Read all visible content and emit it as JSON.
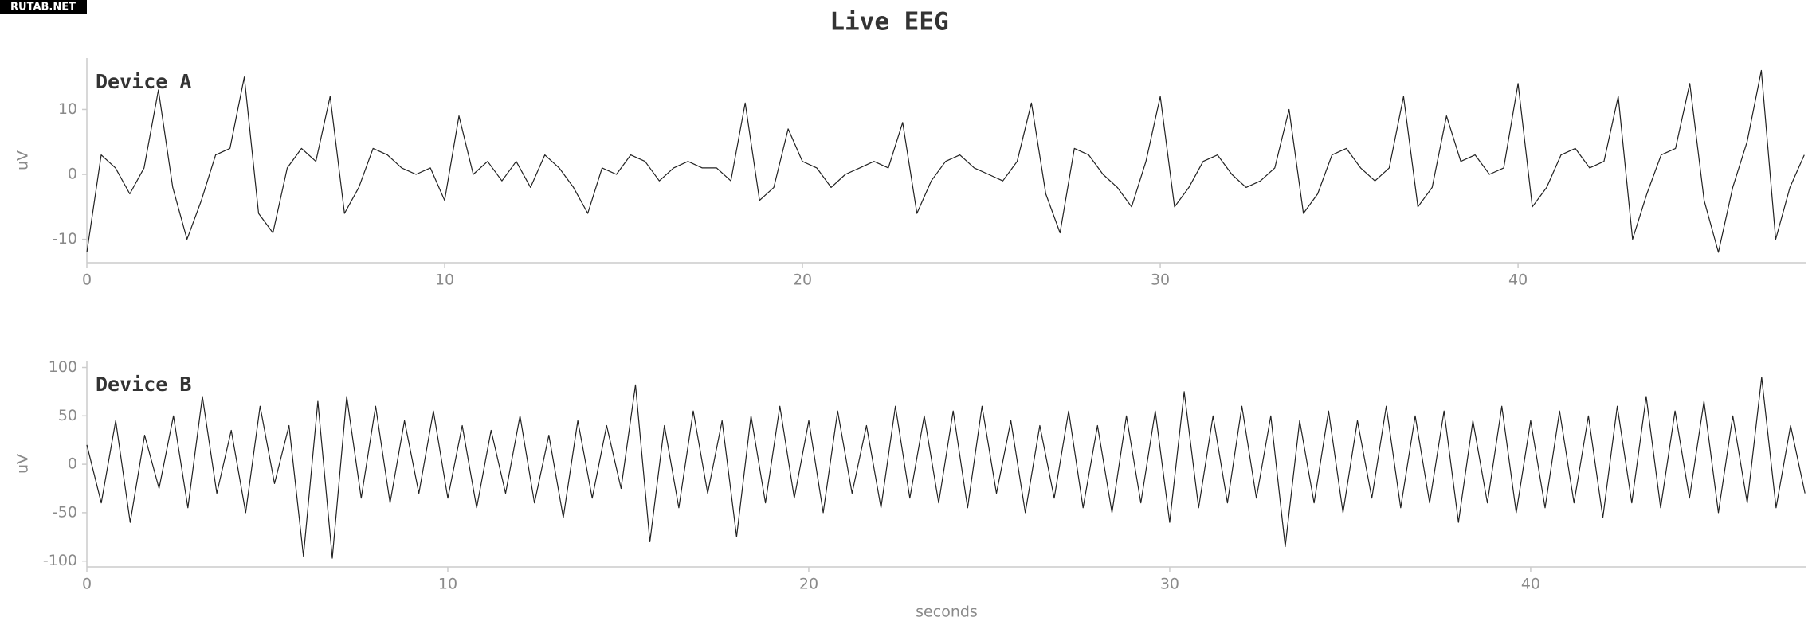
{
  "title": "Live EEG",
  "watermark": "RUTAB.NET",
  "chart_data": [
    {
      "type": "line",
      "annotation": "Device A",
      "ylabel": "uV",
      "color": "#222222",
      "xlim": [
        0,
        48.06
      ],
      "ylim": [
        -13.6,
        17.9
      ],
      "xticks": [
        0,
        10,
        20,
        30,
        40
      ],
      "yticks": [
        -10,
        0,
        10
      ],
      "x": [
        0,
        0.4,
        0.8,
        1.2,
        1.6,
        2,
        2.4,
        2.8,
        3.2,
        3.6,
        4,
        4.4,
        4.8,
        5.2,
        5.6,
        6,
        6.4,
        6.8,
        7.2,
        7.6,
        8,
        8.4,
        8.8,
        9.2,
        9.6,
        10,
        10.4,
        10.8,
        11.2,
        11.6,
        12,
        12.4,
        12.8,
        13.2,
        13.6,
        14,
        14.4,
        14.8,
        15.2,
        15.6,
        16,
        16.4,
        16.8,
        17.2,
        17.6,
        18,
        18.4,
        18.8,
        19.2,
        19.6,
        20,
        20.4,
        20.8,
        21.2,
        21.6,
        22,
        22.4,
        22.8,
        23.2,
        23.6,
        24,
        24.4,
        24.8,
        25.2,
        25.6,
        26,
        26.4,
        26.8,
        27.2,
        27.6,
        28,
        28.4,
        28.8,
        29.2,
        29.6,
        30,
        30.4,
        30.8,
        31.2,
        31.6,
        32,
        32.4,
        32.8,
        33.2,
        33.6,
        34,
        34.4,
        34.8,
        35.2,
        35.6,
        36,
        36.4,
        36.8,
        37.2,
        37.6,
        38,
        38.4,
        38.8,
        39.2,
        39.6,
        40,
        40.4,
        40.8,
        41.2,
        41.6,
        42,
        42.4,
        42.8,
        43.2,
        43.6,
        44,
        44.4,
        44.8,
        45.2,
        45.6,
        46,
        46.4,
        46.8,
        47.2,
        47.6,
        48
      ],
      "values": [
        -12,
        3,
        1,
        -3,
        1,
        13,
        -2,
        -10,
        -4,
        3,
        4,
        15,
        -6,
        -9,
        1,
        4,
        2,
        12,
        -6,
        -2,
        4,
        3,
        1,
        0,
        1,
        -4,
        9,
        0,
        2,
        -1,
        2,
        -2,
        3,
        1,
        -2,
        -6,
        1,
        0,
        3,
        2,
        -1,
        1,
        2,
        1,
        1,
        -1,
        11,
        -4,
        -2,
        7,
        2,
        1,
        -2,
        0,
        1,
        2,
        1,
        8,
        -6,
        -1,
        2,
        3,
        1,
        0,
        -1,
        2,
        11,
        -3,
        -9,
        4,
        3,
        0,
        -2,
        -5,
        2,
        12,
        -5,
        -2,
        2,
        3,
        0,
        -2,
        -1,
        1,
        10,
        -6,
        -3,
        3,
        4,
        1,
        -1,
        1,
        12,
        -5,
        -2,
        9,
        2,
        3,
        0,
        1,
        14,
        -5,
        -2,
        3,
        4,
        1,
        2,
        12,
        -10,
        -3,
        3,
        4,
        14,
        -4,
        -12,
        -2,
        5,
        16,
        -10,
        -2,
        3
      ]
    },
    {
      "type": "line",
      "annotation": "Device B",
      "ylabel": "uV",
      "xlabel": "seconds",
      "color": "#222222",
      "xlim": [
        0,
        47.64
      ],
      "ylim": [
        -106,
        107
      ],
      "xticks": [
        0,
        10,
        20,
        30,
        40
      ],
      "yticks": [
        -100,
        -50,
        0,
        50,
        100
      ],
      "x": [
        0,
        0.4,
        0.8,
        1.2,
        1.6,
        2,
        2.4,
        2.8,
        3.2,
        3.6,
        4,
        4.4,
        4.8,
        5.2,
        5.6,
        6,
        6.4,
        6.8,
        7.2,
        7.6,
        8,
        8.4,
        8.8,
        9.2,
        9.6,
        10,
        10.4,
        10.8,
        11.2,
        11.6,
        12,
        12.4,
        12.8,
        13.2,
        13.6,
        14,
        14.4,
        14.8,
        15.2,
        15.6,
        16,
        16.4,
        16.8,
        17.2,
        17.6,
        18,
        18.4,
        18.8,
        19.2,
        19.6,
        20,
        20.4,
        20.8,
        21.2,
        21.6,
        22,
        22.4,
        22.8,
        23.2,
        23.6,
        24,
        24.4,
        24.8,
        25.2,
        25.6,
        26,
        26.4,
        26.8,
        27.2,
        27.6,
        28,
        28.4,
        28.8,
        29.2,
        29.6,
        30,
        30.4,
        30.8,
        31.2,
        31.6,
        32,
        32.4,
        32.8,
        33.2,
        33.6,
        34,
        34.4,
        34.8,
        35.2,
        35.6,
        36,
        36.4,
        36.8,
        37.2,
        37.6,
        38,
        38.4,
        38.8,
        39.2,
        39.6,
        40,
        40.4,
        40.8,
        41.2,
        41.6,
        42,
        42.4,
        42.8,
        43.2,
        43.6,
        44,
        44.4,
        44.8,
        45.2,
        45.6,
        46,
        46.4,
        46.8,
        47.2,
        47.6
      ],
      "values": [
        20,
        -40,
        45,
        -60,
        30,
        -25,
        50,
        -45,
        70,
        -30,
        35,
        -50,
        60,
        -20,
        40,
        -95,
        65,
        -97,
        70,
        -35,
        60,
        -40,
        45,
        -30,
        55,
        -35,
        40,
        -45,
        35,
        -30,
        50,
        -40,
        30,
        -55,
        45,
        -35,
        40,
        -25,
        82,
        -80,
        40,
        -45,
        55,
        -30,
        45,
        -75,
        50,
        -40,
        60,
        -35,
        45,
        -50,
        55,
        -30,
        40,
        -45,
        60,
        -35,
        50,
        -40,
        55,
        -45,
        60,
        -30,
        45,
        -50,
        40,
        -35,
        55,
        -45,
        40,
        -50,
        50,
        -40,
        55,
        -60,
        75,
        -45,
        50,
        -40,
        60,
        -35,
        50,
        -85,
        45,
        -40,
        55,
        -50,
        45,
        -35,
        60,
        -45,
        50,
        -40,
        55,
        -60,
        45,
        -40,
        60,
        -50,
        45,
        -45,
        55,
        -40,
        50,
        -55,
        60,
        -40,
        70,
        -45,
        55,
        -35,
        65,
        -50,
        50,
        -40,
        90,
        -45,
        40,
        -30
      ]
    }
  ]
}
